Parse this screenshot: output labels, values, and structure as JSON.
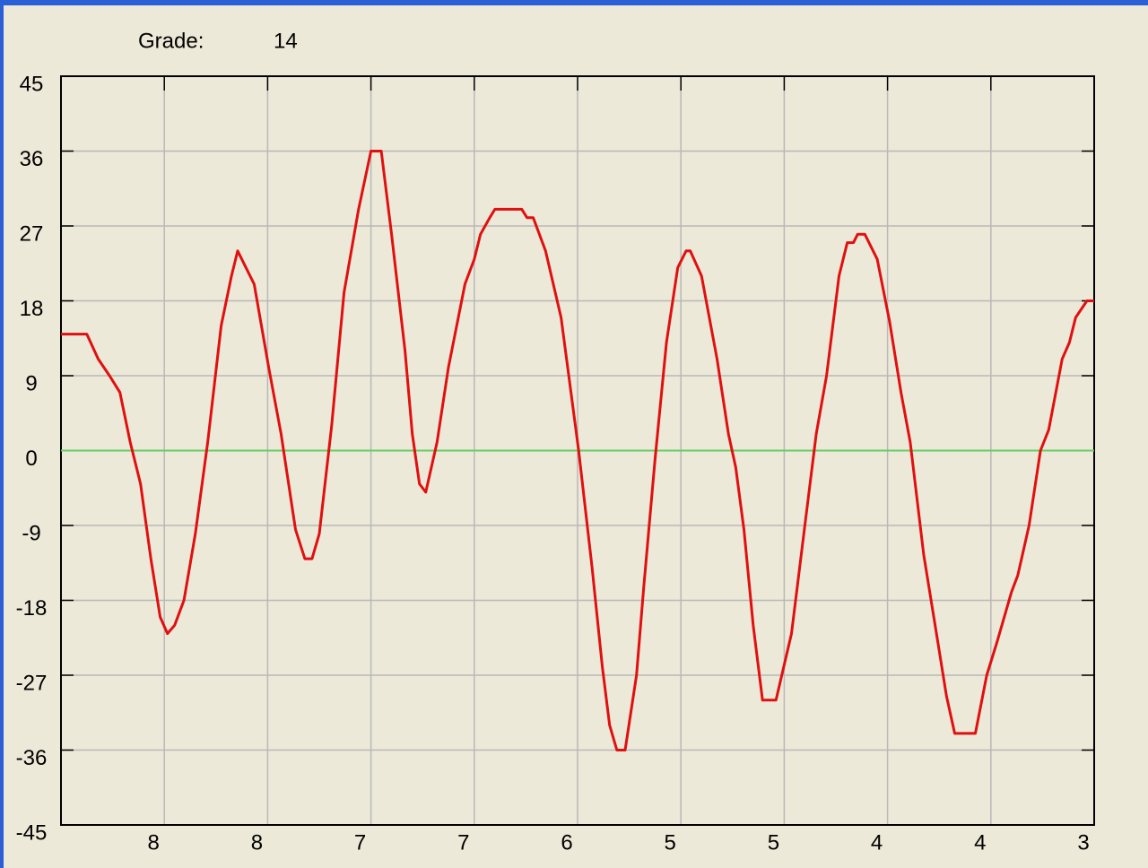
{
  "header": {
    "label": "Grade:",
    "value": 14
  },
  "chart_data": {
    "type": "line",
    "x": [
      0,
      0.25,
      0.36,
      0.47,
      0.57,
      0.67,
      0.77,
      0.87,
      0.96,
      1.03,
      1.1,
      1.19,
      1.3,
      1.42,
      1.55,
      1.65,
      1.71,
      1.87,
      2.01,
      2.13,
      2.27,
      2.36,
      2.43,
      2.5,
      2.62,
      2.74,
      2.88,
      3.0,
      3.1,
      3.2,
      3.33,
      3.4,
      3.47,
      3.53,
      3.64,
      3.75,
      3.91,
      4.0,
      4.06,
      4.15,
      4.2,
      4.46,
      4.51,
      4.57,
      4.69,
      4.84,
      5.01,
      5.14,
      5.24,
      5.31,
      5.38,
      5.46,
      5.57,
      5.64,
      5.75,
      5.86,
      5.97,
      6.05,
      6.09,
      6.2,
      6.35,
      6.46,
      6.53,
      6.61,
      6.7,
      6.79,
      6.92,
      7.07,
      7.2,
      7.31,
      7.41,
      7.53,
      7.61,
      7.67,
      7.71,
      7.78,
      7.9,
      8.02,
      8.13,
      8.22,
      8.35,
      8.48,
      8.57,
      8.65,
      8.85,
      8.96,
      9.06,
      9.2,
      9.26,
      9.37,
      9.48,
      9.56,
      9.69,
      9.76,
      9.82,
      9.93,
      10.0
    ],
    "series": [
      {
        "color": "#e01010",
        "values": [
          14,
          14,
          11,
          9,
          7,
          1,
          -4,
          -13,
          -20,
          -22,
          -21,
          -18,
          -10,
          1,
          15,
          21,
          24,
          20,
          10,
          2,
          -9.5,
          -13,
          -13,
          -10,
          3,
          19,
          29,
          36,
          36,
          26,
          12,
          2,
          -4,
          -5,
          1,
          10,
          20,
          23,
          26,
          28,
          29,
          29,
          28,
          28,
          24,
          16,
          0,
          -14,
          -26,
          -33,
          -36,
          -36,
          -27,
          -16.5,
          -1,
          13,
          22,
          24,
          24,
          21,
          11,
          2,
          -2,
          -9.5,
          -21,
          -30,
          -30,
          -22,
          -9,
          2,
          9,
          21,
          25,
          25,
          26,
          26,
          23,
          15.5,
          7,
          1,
          -12.5,
          -22.5,
          -29.5,
          -34,
          -34,
          -27,
          -23,
          -17,
          -15,
          -9,
          0,
          2.5,
          11,
          13,
          16,
          18,
          18
        ]
      }
    ],
    "xlim": [
      0,
      10
    ],
    "xticks": [
      {
        "value": 1,
        "label": "8"
      },
      {
        "value": 2,
        "label": "8"
      },
      {
        "value": 3,
        "label": "7"
      },
      {
        "value": 4,
        "label": "7"
      },
      {
        "value": 5,
        "label": "6"
      },
      {
        "value": 6,
        "label": "5"
      },
      {
        "value": 7,
        "label": "5"
      },
      {
        "value": 8,
        "label": "4"
      },
      {
        "value": 9,
        "label": "4"
      },
      {
        "value": 10,
        "label": "3"
      }
    ],
    "ylim": [
      -45,
      45
    ],
    "yticks": [
      -45,
      -36,
      -27,
      -18,
      -9,
      0,
      9,
      18,
      27,
      36,
      45
    ],
    "grid": true,
    "hline": 0,
    "hline_color": "#66cc66"
  }
}
